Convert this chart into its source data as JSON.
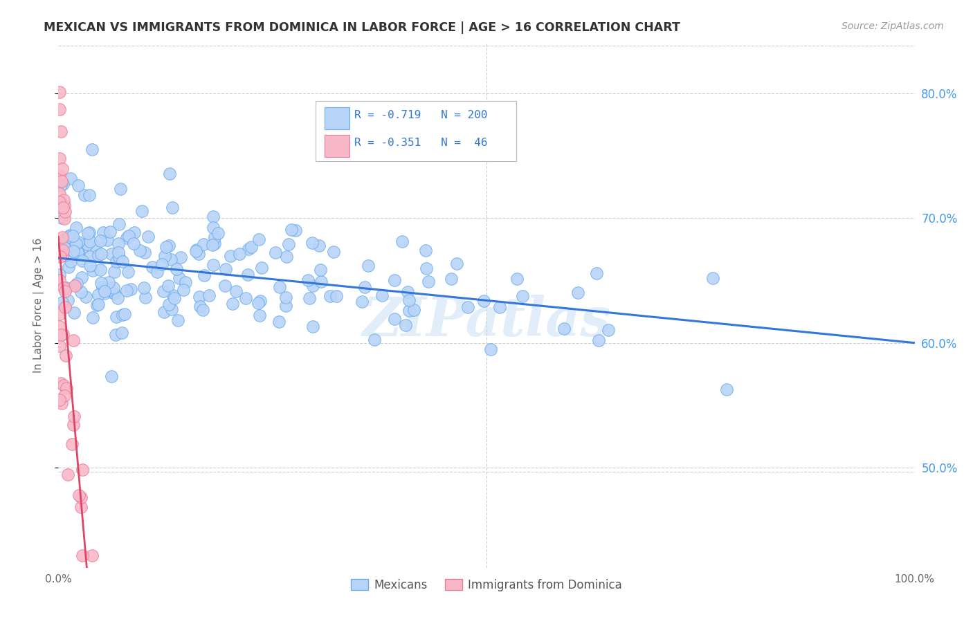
{
  "title": "MEXICAN VS IMMIGRANTS FROM DOMINICA IN LABOR FORCE | AGE > 16 CORRELATION CHART",
  "source_text": "Source: ZipAtlas.com",
  "ylabel": "In Labor Force | Age > 16",
  "xlim": [
    0.0,
    1.0
  ],
  "ylim": [
    0.42,
    0.84
  ],
  "yticks": [
    0.5,
    0.6,
    0.7,
    0.8
  ],
  "ytick_labels": [
    "50.0%",
    "60.0%",
    "70.0%",
    "80.0%"
  ],
  "xticks": [
    0.0,
    0.1,
    0.2,
    0.3,
    0.4,
    0.5,
    0.6,
    0.7,
    0.8,
    0.9,
    1.0
  ],
  "xtick_labels": [
    "0.0%",
    "",
    "",
    "",
    "",
    "",
    "",
    "",
    "",
    "",
    "100.0%"
  ],
  "watermark": "ZIPatlas",
  "legend_r_mexican": "-0.719",
  "legend_n_mexican": "200",
  "legend_r_dominica": "-0.351",
  "legend_n_dominica": "46",
  "mexican_color": "#b8d4f8",
  "dominica_color": "#f8b8c8",
  "mexican_edge_color": "#6aabee",
  "dominica_edge_color": "#ee7898",
  "mexican_line_color": "#3377dd",
  "dominica_line_color": "#dd4466",
  "dominica_line_dashed_color": "#ddaabb",
  "background_color": "#ffffff",
  "grid_color": "#cccccc",
  "title_color": "#333333",
  "axis_label_color": "#666666",
  "tick_color_right": "#4499ee",
  "hline_separator": 0.497,
  "seed": 42
}
